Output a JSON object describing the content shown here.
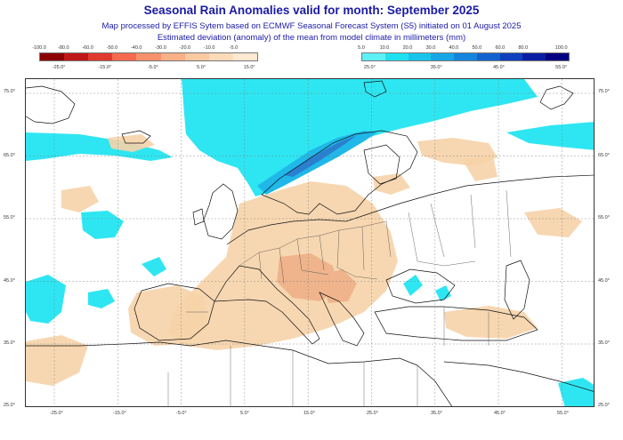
{
  "title": "Seasonal Rain Anomalies valid for month: September 2025",
  "subtitle_lines": [
    "Map processed by EFFIS Sytem based on ECMWF Seasonal Forecast System (S5) initiated on 01 August 2025",
    "Estimated deviation (anomaly) of the mean from model climate in millimeters (mm)"
  ],
  "legend_negative": {
    "colors": [
      "#8b0000",
      "#c01818",
      "#e03a2e",
      "#f46a4e",
      "#f5916b",
      "#f7b088",
      "#f9c9a2",
      "#fbdcba",
      "#fde9d2"
    ],
    "upper_labels": [
      "-100.0",
      "-80.0",
      "-60.0",
      "-50.0",
      "-40.0",
      "-30.0",
      "-20.0",
      "-10.0",
      "-5.0"
    ],
    "lower_labels": [
      "-25.0°",
      "-15.0°",
      "-5.0°",
      "5.0°",
      "15.0°"
    ]
  },
  "legend_positive": {
    "colors": [
      "#5ff0f5",
      "#1ee0f0",
      "#19c4ec",
      "#17a6e6",
      "#1585dc",
      "#1363cf",
      "#1040bd",
      "#0a1ea3",
      "#000080"
    ],
    "upper_labels": [
      "5.0",
      "10.0",
      "20.0",
      "30.0",
      "40.0",
      "50.0",
      "60.0",
      "80.0",
      "100.0"
    ],
    "lower_labels": [
      "25.0°",
      "35.0°",
      "45.0°",
      "55.0°"
    ]
  },
  "map": {
    "lat_labels_left": [
      "75.0°",
      "65.0°",
      "55.0°",
      "45.0°",
      "35.0°",
      "25.0°"
    ],
    "lat_labels_right": [
      "75.0°",
      "65.0°",
      "55.0°",
      "45.0°",
      "35.0°",
      "25.0°"
    ],
    "lon_labels_bottom": [
      "-25.0°",
      "-15.0°",
      "-5.0°",
      "5.0°",
      "15.0°",
      "25.0°",
      "35.0°",
      "45.0°",
      "55.0°"
    ],
    "colors": {
      "wet_light": "#2ee6f2",
      "wet_medium": "#1fb8e8",
      "wet_strong": "#2a7fcf",
      "dry_light": "#f6d3a8",
      "dry_medium": "#efb48c",
      "coast": "#111111",
      "grid": "#777777"
    }
  }
}
